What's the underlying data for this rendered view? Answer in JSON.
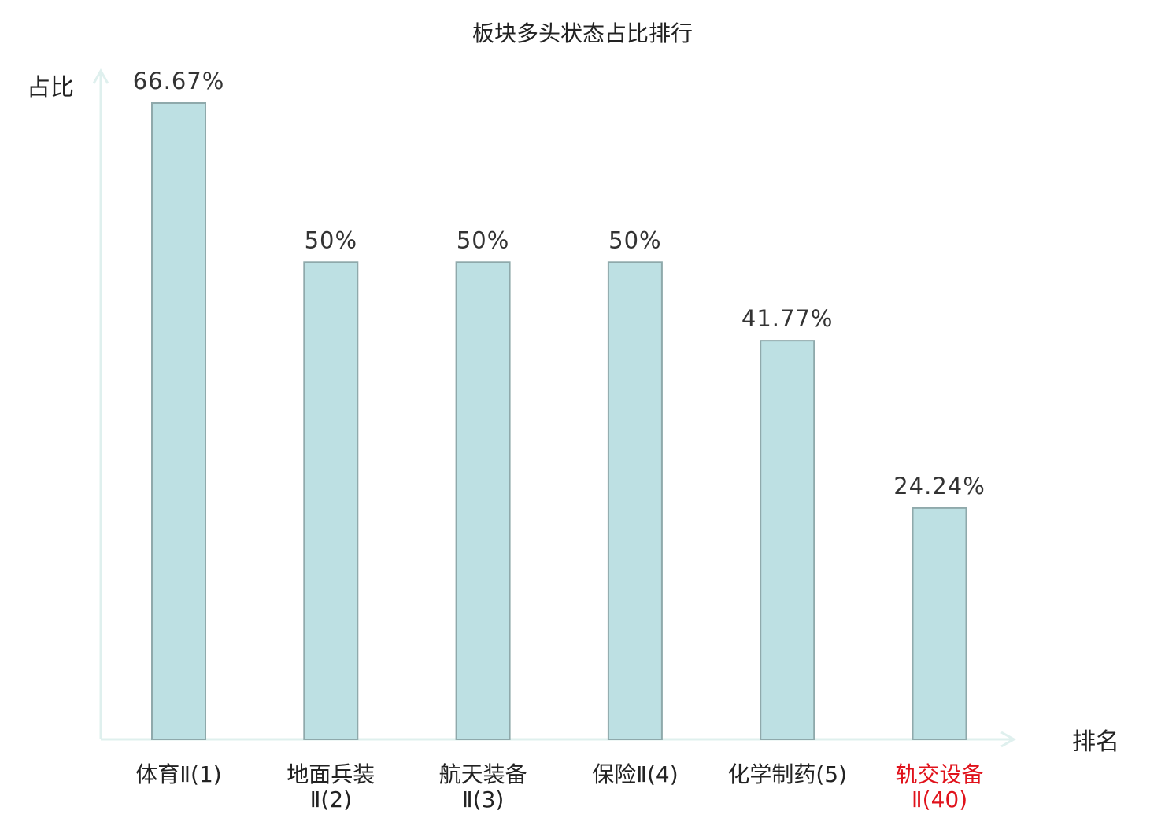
{
  "chart_data": {
    "type": "bar",
    "title": "板块多头状态占比排行",
    "ylabel": "占比",
    "xlabel": "排名",
    "categories": [
      [
        "体育Ⅱ(1)"
      ],
      [
        "地面兵装",
        "Ⅱ(2)"
      ],
      [
        "航天装备",
        "Ⅱ(3)"
      ],
      [
        "保险Ⅱ(4)"
      ],
      [
        "化学制药(5)"
      ],
      [
        "轨交设备",
        "Ⅱ(40)"
      ]
    ],
    "values": [
      66.67,
      50,
      50,
      50,
      41.77,
      24.24
    ],
    "value_labels": [
      "66.67%",
      "50%",
      "50%",
      "50%",
      "41.77%",
      "24.24%"
    ],
    "highlight_index": 5,
    "ylim": [
      0,
      70
    ],
    "grid": false,
    "colors": {
      "bar_fill": "#bde0e3",
      "bar_stroke": "#8fa9ab",
      "axis": "#dff0ee",
      "text": "#222222",
      "value_text": "#333333",
      "highlight": "#e0121b"
    }
  }
}
